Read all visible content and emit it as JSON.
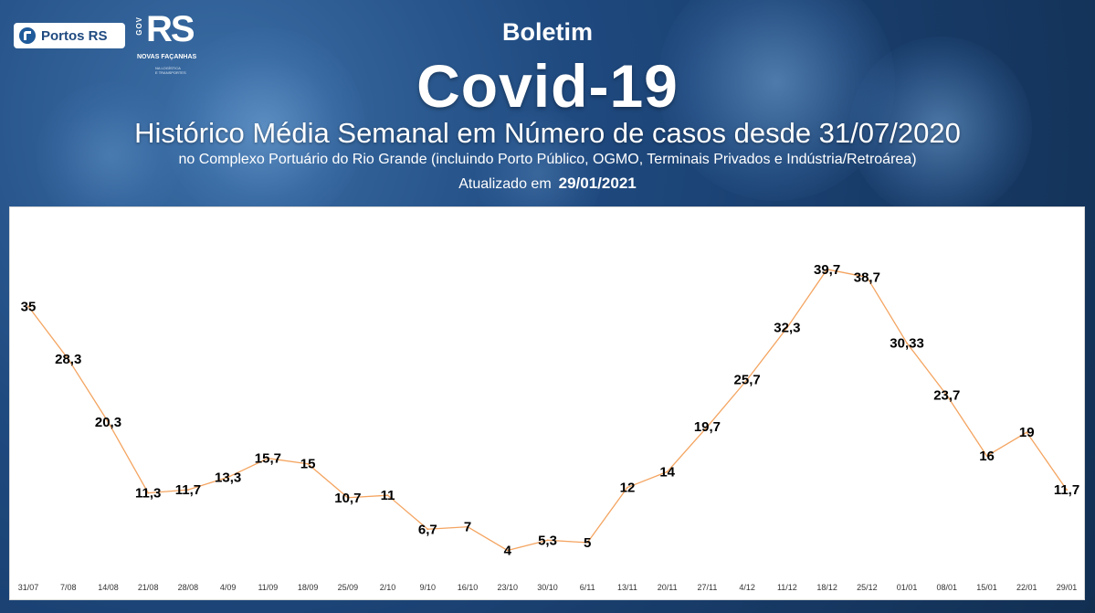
{
  "header": {
    "logo_portos_text": "Portos RS",
    "logo_rs_gov": "GOV",
    "logo_rs_text": "RS",
    "logo_rs_novas": "NOVAS FAÇANHAS",
    "logo_rs_sub_line1": "NA LOGÍSTICA",
    "logo_rs_sub_line2": "E TRANSPORTES",
    "title_small": "Boletim",
    "title_main": "Covid-19",
    "title_history": "Histórico Média Semanal em Número de casos desde 31/07/2020",
    "subtitle": "no Complexo Portuário do Rio Grande (incluindo Porto Público, OGMO, Terminais Privados e Indústria/Retroárea)",
    "updated_label": "Atualizado em",
    "updated_date": "29/01/2021"
  },
  "colors": {
    "background": "#1f4a80",
    "line": "#f4a460",
    "panel": "#ffffff"
  },
  "chart_data": {
    "type": "line",
    "categories": [
      "31/07",
      "7/08",
      "14/08",
      "21/08",
      "28/08",
      "4/09",
      "11/09",
      "18/09",
      "25/09",
      "2/10",
      "9/10",
      "16/10",
      "23/10",
      "30/10",
      "6/11",
      "13/11",
      "20/11",
      "27/11",
      "4/12",
      "11/12",
      "18/12",
      "25/12",
      "01/01",
      "08/01",
      "15/01",
      "22/01",
      "29/01"
    ],
    "values": [
      35,
      28.3,
      20.3,
      11.3,
      11.7,
      13.3,
      15.7,
      15,
      10.7,
      11,
      6.7,
      7,
      4,
      5.3,
      5,
      12,
      14,
      19.7,
      25.7,
      32.3,
      39.7,
      38.7,
      30.33,
      23.7,
      16,
      19,
      11.7
    ],
    "data_labels": [
      "35",
      "28,3",
      "20,3",
      "11,3",
      "11,7",
      "13,3",
      "15,7",
      "15",
      "10,7",
      "11",
      "6,7",
      "7",
      "4",
      "5,3",
      "5",
      "12",
      "14",
      "19,7",
      "25,7",
      "32,3",
      "39,7",
      "38,7",
      "30,33",
      "23,7",
      "16",
      "19",
      "11,7"
    ],
    "ylim": [
      0,
      42
    ],
    "grid": false,
    "legend": "none"
  }
}
